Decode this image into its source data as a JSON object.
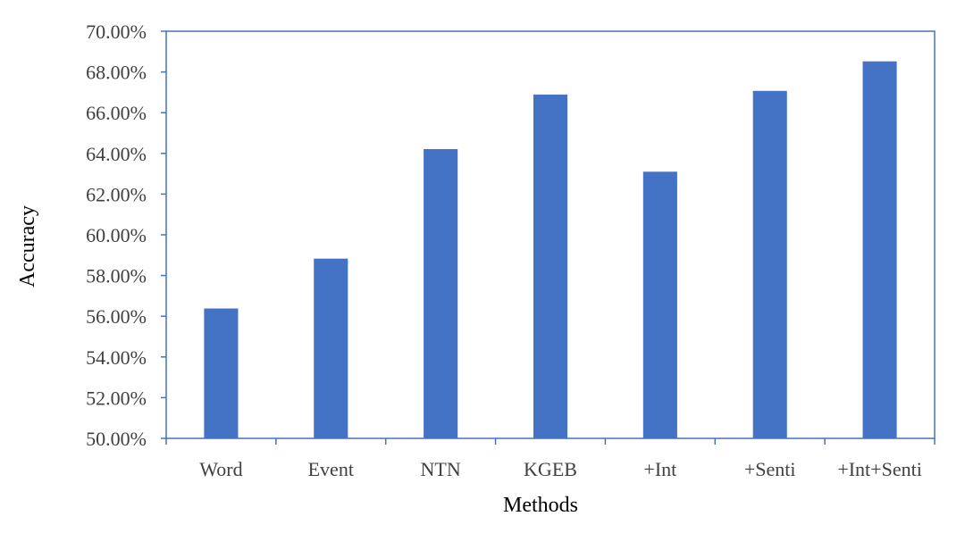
{
  "chart_data": {
    "type": "bar",
    "title": "",
    "xlabel": "Methods",
    "ylabel": "Accuracy",
    "categories": [
      "Word",
      "Event",
      "NTN",
      "KGEB",
      "+Int",
      "+Senti",
      "+Int+Senti"
    ],
    "values": [
      56.38,
      58.83,
      64.21,
      66.89,
      63.1,
      67.07,
      68.52
    ],
    "ylim": [
      50,
      70
    ],
    "yticks": [
      50,
      52,
      54,
      56,
      58,
      60,
      62,
      64,
      66,
      68,
      70
    ],
    "ytick_labels": [
      "50.00%",
      "52.00%",
      "54.00%",
      "56.00%",
      "58.00%",
      "60.00%",
      "62.00%",
      "64.00%",
      "66.00%",
      "68.00%",
      "70.00%"
    ],
    "grid": false,
    "legend": "none",
    "colors": {
      "bar": "#4472C4",
      "frame": "#4472C4",
      "text": "#404040"
    }
  }
}
